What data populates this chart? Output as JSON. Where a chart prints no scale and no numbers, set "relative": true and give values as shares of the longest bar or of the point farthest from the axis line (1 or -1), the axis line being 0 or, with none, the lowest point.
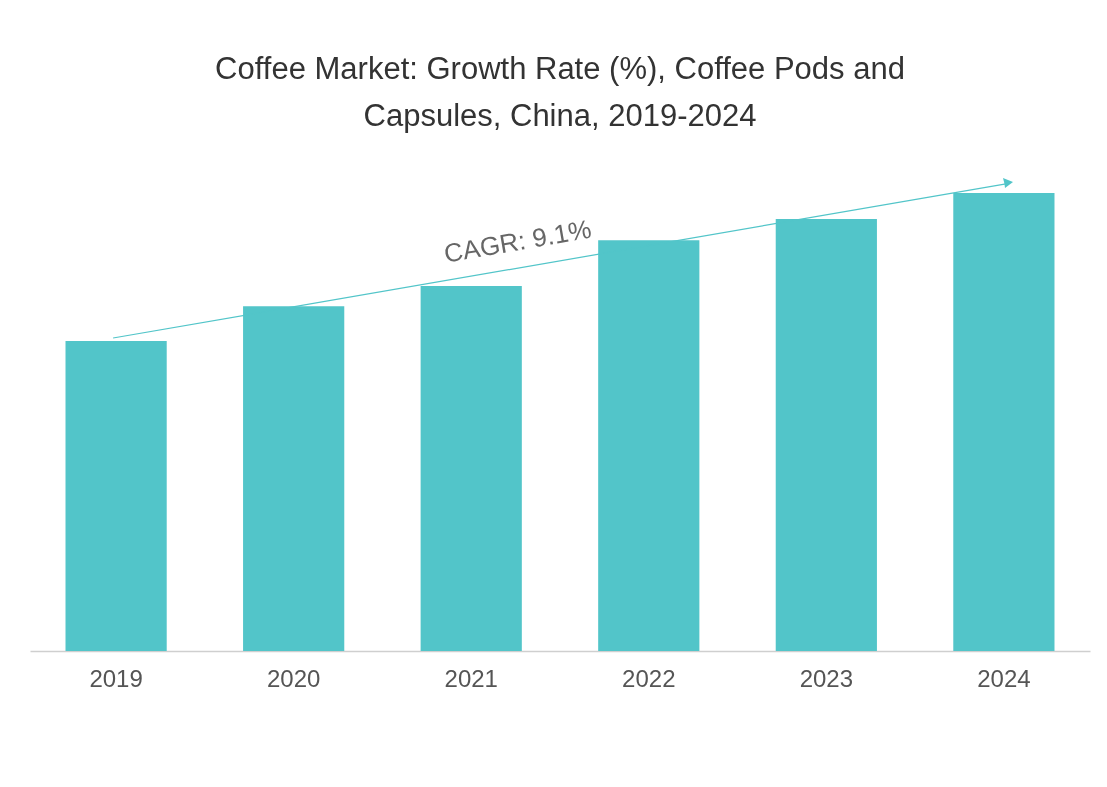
{
  "chart_data": {
    "type": "bar",
    "title": "Coffee Market: Growth Rate (%), Coffee Pods and Capsules, China, 2019-2024",
    "categories": [
      "2019",
      "2020",
      "2021",
      "2022",
      "2023",
      "2024"
    ],
    "values": [
      0.677,
      0.753,
      0.797,
      0.897,
      0.943,
      1
    ],
    "color": "#52c5c9",
    "relative": true,
    "annotations": [
      "CAGR: 9.1%"
    ]
  }
}
